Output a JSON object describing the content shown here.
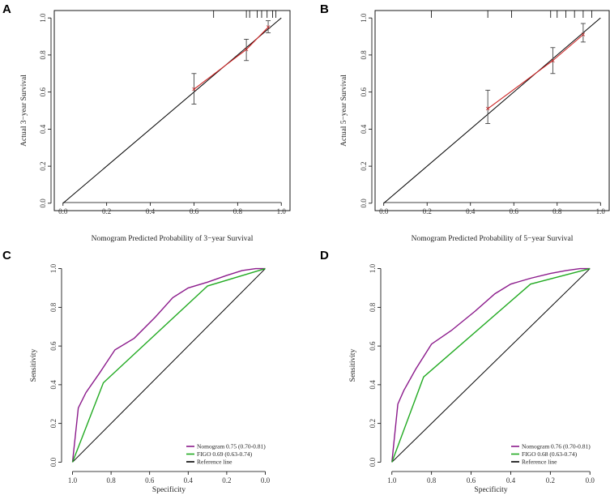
{
  "figure_panels": [
    "A",
    "B",
    "C",
    "D"
  ],
  "chart_data": [
    {
      "panel": "A",
      "type": "line",
      "subtype": "calibration",
      "title": "",
      "xlabel": "Nomogram Predicted Probability of 3−year Survival",
      "ylabel": "Actual 3−year Survival",
      "xlim": [
        -0.04,
        1.04
      ],
      "ylim": [
        -0.04,
        1.04
      ],
      "xticks": [
        "0.0",
        "0.2",
        "0.4",
        "0.6",
        "0.8",
        "1.0"
      ],
      "yticks": [
        "0.0",
        "0.2",
        "0.4",
        "0.6",
        "0.8",
        "1.0"
      ],
      "reference_line": [
        [
          0,
          0
        ],
        [
          1,
          1
        ]
      ],
      "points": [
        {
          "x": 0.6,
          "y": 0.615,
          "lo": 0.535,
          "hi": 0.7
        },
        {
          "x": 0.84,
          "y": 0.83,
          "lo": 0.77,
          "hi": 0.885
        },
        {
          "x": 0.94,
          "y": 0.95,
          "lo": 0.92,
          "hi": 0.985
        }
      ],
      "rug": [
        0.69,
        0.84,
        0.855,
        0.89,
        0.91,
        0.935,
        0.96,
        0.975
      ],
      "colors": {
        "curve": "#cc2222",
        "point": "#cc2222",
        "error": "#444444",
        "reference": "#000000"
      }
    },
    {
      "panel": "B",
      "type": "line",
      "subtype": "calibration",
      "title": "",
      "xlabel": "Nomogram Predicted Probability of 5−year Survival",
      "ylabel": "Actual 5−year Survival",
      "xlim": [
        -0.04,
        1.04
      ],
      "ylim": [
        -0.04,
        1.04
      ],
      "xticks": [
        "0.0",
        "0.2",
        "0.4",
        "0.6",
        "0.8",
        "1.0"
      ],
      "yticks": [
        "0.0",
        "0.2",
        "0.4",
        "0.6",
        "0.8",
        "1.0"
      ],
      "reference_line": [
        [
          0,
          0
        ],
        [
          1,
          1
        ]
      ],
      "points": [
        {
          "x": 0.48,
          "y": 0.51,
          "lo": 0.43,
          "hi": 0.61
        },
        {
          "x": 0.78,
          "y": 0.77,
          "lo": 0.7,
          "hi": 0.84
        },
        {
          "x": 0.92,
          "y": 0.91,
          "lo": 0.87,
          "hi": 0.97
        }
      ],
      "rug": [
        0.22,
        0.48,
        0.59,
        0.77,
        0.8,
        0.84,
        0.88,
        0.92,
        0.96
      ],
      "colors": {
        "curve": "#cc2222",
        "point": "#cc2222",
        "error": "#444444",
        "reference": "#000000"
      }
    },
    {
      "panel": "C",
      "type": "line",
      "subtype": "roc",
      "title": "",
      "xlabel": "Specificity",
      "ylabel": "Sensitivity",
      "xlim": [
        1.04,
        -0.04
      ],
      "ylim": [
        -0.04,
        1.04
      ],
      "xticks": [
        "1.0",
        "0.8",
        "0.6",
        "0.4",
        "0.2",
        "0.0"
      ],
      "yticks": [
        "0.0",
        "0.2",
        "0.4",
        "0.6",
        "0.8",
        "1.0"
      ],
      "series": [
        {
          "name": "Nomogram 0.75 (0.70-0.81)",
          "color": "#8b1a8b",
          "x": [
            1.0,
            0.97,
            0.93,
            0.86,
            0.78,
            0.68,
            0.57,
            0.48,
            0.4,
            0.3,
            0.2,
            0.12,
            0.05,
            0.0
          ],
          "y": [
            0.0,
            0.28,
            0.36,
            0.46,
            0.58,
            0.64,
            0.75,
            0.85,
            0.9,
            0.93,
            0.965,
            0.99,
            1.0,
            1.0
          ]
        },
        {
          "name": "FIGO 0.69 (0.63-0.74)",
          "color": "#22aa22",
          "x": [
            1.0,
            0.84,
            0.3,
            0.0
          ],
          "y": [
            0.0,
            0.41,
            0.91,
            1.0
          ]
        }
      ],
      "reference_line": {
        "name": "Reference line",
        "color": "#000000",
        "x": [
          1.0,
          0.0
        ],
        "y": [
          0.0,
          1.0
        ]
      },
      "legend": {
        "position": "bottom-right",
        "entries": [
          "Nomogram 0.75 (0.70-0.81)",
          "FIGO 0.69 (0.63-0.74)",
          "Reference line"
        ],
        "colors": [
          "#8b1a8b",
          "#22aa22",
          "#000000"
        ]
      }
    },
    {
      "panel": "D",
      "type": "line",
      "subtype": "roc",
      "title": "",
      "xlabel": "Specificity",
      "ylabel": "Sensitivity",
      "xlim": [
        1.04,
        -0.04
      ],
      "ylim": [
        -0.04,
        1.04
      ],
      "xticks": [
        "1.0",
        "0.8",
        "0.6",
        "0.4",
        "0.2",
        "0.0"
      ],
      "yticks": [
        "0.0",
        "0.2",
        "0.4",
        "0.6",
        "0.8",
        "1.0"
      ],
      "series": [
        {
          "name": "Nomogram 0.76 (0.70-0.81)",
          "color": "#8b1a8b",
          "x": [
            1.0,
            0.97,
            0.94,
            0.88,
            0.8,
            0.7,
            0.58,
            0.48,
            0.4,
            0.3,
            0.2,
            0.12,
            0.05,
            0.0
          ],
          "y": [
            0.0,
            0.3,
            0.37,
            0.48,
            0.61,
            0.68,
            0.78,
            0.87,
            0.92,
            0.95,
            0.975,
            0.99,
            1.0,
            1.0
          ]
        },
        {
          "name": "FIGO 0.68 (0.63-0.74)",
          "color": "#22aa22",
          "x": [
            1.0,
            0.84,
            0.3,
            0.0
          ],
          "y": [
            0.0,
            0.44,
            0.92,
            1.0
          ]
        }
      ],
      "reference_line": {
        "name": "Reference line",
        "color": "#000000",
        "x": [
          1.0,
          0.0
        ],
        "y": [
          0.0,
          1.0
        ]
      },
      "legend": {
        "position": "bottom-right",
        "entries": [
          "Nomogram 0.76 (0.70-0.81)",
          "FIGO 0.68 (0.63-0.74)",
          "Reference line"
        ],
        "colors": [
          "#8b1a8b",
          "#22aa22",
          "#000000"
        ]
      }
    }
  ]
}
